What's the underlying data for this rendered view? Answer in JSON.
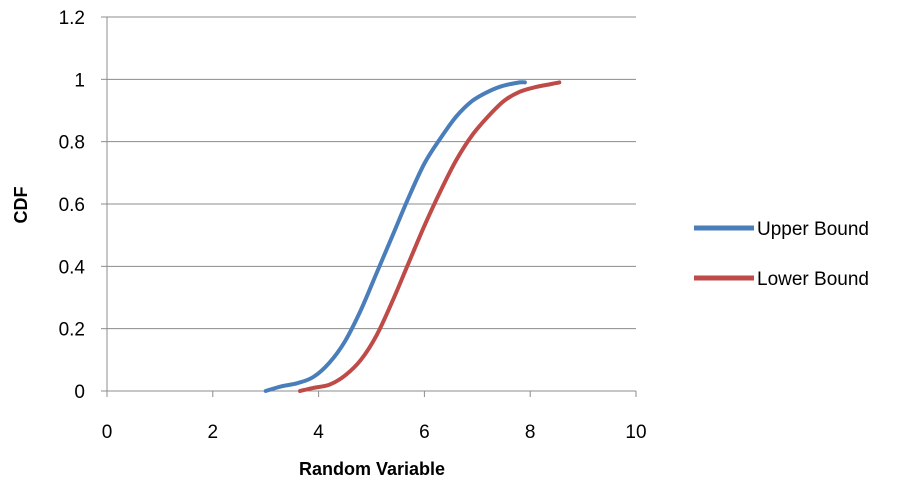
{
  "chart_data": {
    "type": "line",
    "title": "",
    "xlabel": "Random Variable",
    "ylabel": "CDF",
    "xlim": [
      0,
      10
    ],
    "ylim": [
      0,
      1.2
    ],
    "x_ticks": [
      "0",
      "2",
      "4",
      "6",
      "8",
      "10"
    ],
    "y_ticks": [
      "0",
      "0.2",
      "0.4",
      "0.6",
      "0.8",
      "1",
      "1.2"
    ],
    "grid": "horizontal",
    "legend_position": "right",
    "series": [
      {
        "name": "Upper Bound",
        "color": "#4a7ebb",
        "x": [
          3.0,
          3.3,
          3.6,
          3.9,
          4.2,
          4.5,
          4.8,
          5.1,
          5.4,
          5.7,
          6.0,
          6.3,
          6.6,
          6.9,
          7.2,
          7.5,
          7.8,
          7.9
        ],
        "y": [
          0.0,
          0.015,
          0.025,
          0.045,
          0.09,
          0.16,
          0.26,
          0.38,
          0.5,
          0.62,
          0.73,
          0.81,
          0.88,
          0.93,
          0.96,
          0.98,
          0.99,
          0.99
        ]
      },
      {
        "name": "Lower Bound",
        "color": "#be4b48",
        "x": [
          3.65,
          3.9,
          4.2,
          4.5,
          4.8,
          5.1,
          5.4,
          5.7,
          6.0,
          6.3,
          6.6,
          6.9,
          7.2,
          7.5,
          7.8,
          8.1,
          8.4,
          8.55
        ],
        "y": [
          0.0,
          0.01,
          0.02,
          0.05,
          0.1,
          0.18,
          0.29,
          0.41,
          0.53,
          0.64,
          0.74,
          0.82,
          0.88,
          0.93,
          0.96,
          0.975,
          0.985,
          0.99
        ]
      }
    ]
  }
}
